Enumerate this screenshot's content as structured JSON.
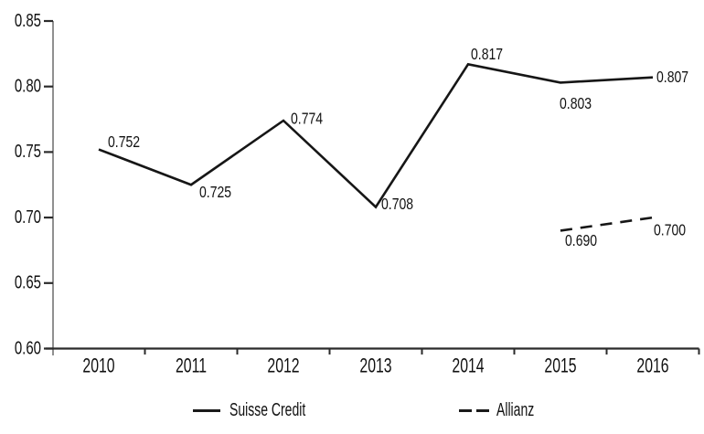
{
  "window": {
    "background": "#ffffff"
  },
  "chart_data": {
    "type": "line",
    "title": "",
    "xlabel": "",
    "ylabel": "",
    "categories": [
      "2010",
      "2011",
      "2012",
      "2013",
      "2014",
      "2015",
      "2016"
    ],
    "series": [
      {
        "name": "Suisse Credit",
        "line_style": "solid",
        "values": [
          0.752,
          0.725,
          0.774,
          0.708,
          0.817,
          0.803,
          0.807
        ],
        "point_labels": [
          "0.752",
          "0.725",
          "0.774",
          "0.708",
          "0.817",
          "0.803",
          "0.807"
        ],
        "label_offsets": [
          [
            10,
            -8
          ],
          [
            9,
            8
          ],
          [
            8,
            -2
          ],
          [
            6,
            -3
          ],
          [
            3,
            -11
          ],
          [
            -1,
            23
          ],
          [
            4,
            0
          ]
        ]
      },
      {
        "name": "Allianz",
        "line_style": "dashed",
        "values": [
          null,
          null,
          null,
          null,
          null,
          0.69,
          0.7
        ],
        "point_labels": [
          null,
          null,
          null,
          null,
          null,
          "0.690",
          "0.700"
        ],
        "label_offsets": [
          null,
          null,
          null,
          null,
          null,
          [
            5,
            11
          ],
          [
            1,
            14
          ]
        ]
      }
    ],
    "ylim": [
      0.6,
      0.85
    ],
    "yticks": [
      0.6,
      0.65,
      0.7,
      0.75,
      0.8,
      0.85
    ],
    "ytick_labels": [
      "0.60",
      "0.65",
      "0.70",
      "0.75",
      "0.80",
      "0.85"
    ],
    "grid": false,
    "legend_position": "bottom",
    "line_color": "#161616",
    "axis_color": "#2b2b2b",
    "y_axis_line_color": "#6b6b6b",
    "text_color": "#111111"
  }
}
